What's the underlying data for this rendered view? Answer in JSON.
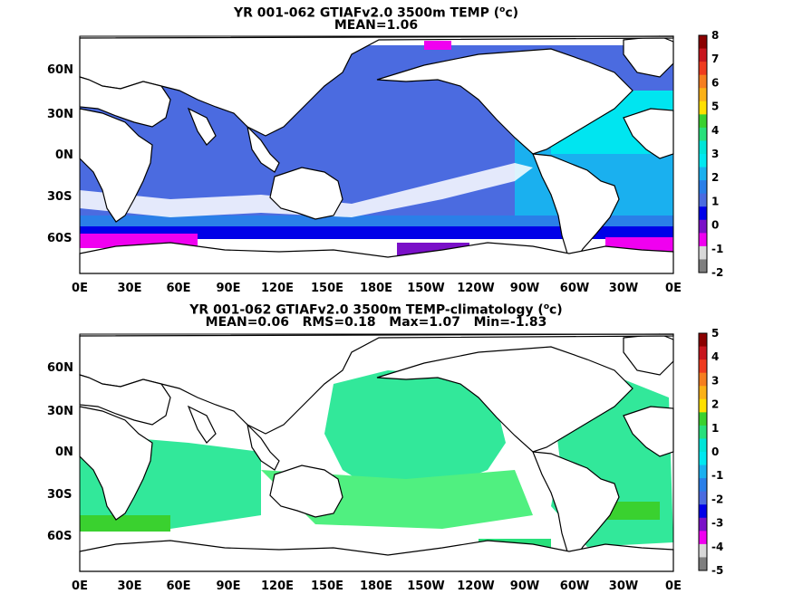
{
  "panels": [
    {
      "title_line1": "YR 001-062 GTIAFv2.0 3500m TEMP (",
      "title_unit": "o",
      "title_line1_end": "c)",
      "title_line2": "MEAN=1.06",
      "lat_labels": [
        "60N",
        "30N",
        "0N",
        "30S",
        "60S"
      ],
      "lon_labels": [
        "0E",
        "30E",
        "60E",
        "90E",
        "120E",
        "150E",
        "180E",
        "150W",
        "120W",
        "90W",
        "60W",
        "30W",
        "0E"
      ],
      "colorbar": {
        "ticks": [
          "8",
          "7",
          "6",
          "5",
          "4",
          "3",
          "2",
          "1",
          "0",
          "-1",
          "-2"
        ],
        "colors": [
          "#8b0000",
          "#c8161e",
          "#ef3b1f",
          "#f57e20",
          "#fbb117",
          "#ffe000",
          "#3ad12f",
          "#28e07b",
          "#00e5d8",
          "#00e8f0",
          "#1ab0ef",
          "#2a7fe8",
          "#4b6be0",
          "#0000e8",
          "#7a10c8",
          "#f000f0",
          "#d8d8d8",
          "#7f7f7f"
        ]
      }
    },
    {
      "title_line1": "YR 001-062 GTIAFv2.0 3500m TEMP-climatology (",
      "title_unit": "o",
      "title_line1_end": "c)",
      "title_line2": "MEAN=0.06   RMS=0.18   Max=1.07   Min=-1.83",
      "lat_labels": [
        "60N",
        "30N",
        "0N",
        "30S",
        "60S"
      ],
      "lon_labels": [
        "0E",
        "30E",
        "60E",
        "90E",
        "120E",
        "150E",
        "180E",
        "150W",
        "120W",
        "90W",
        "60W",
        "30W",
        "0E"
      ],
      "colorbar": {
        "ticks": [
          "5",
          "4",
          "3",
          "2",
          "1",
          "0",
          "-1",
          "-2",
          "-3",
          "-4",
          "-5"
        ],
        "colors": [
          "#8b0000",
          "#c8161e",
          "#ef3b1f",
          "#f57e20",
          "#fbb117",
          "#ffe000",
          "#3ad12f",
          "#28e07b",
          "#00e5d8",
          "#00e8f0",
          "#1ab0ef",
          "#2a7fe8",
          "#4b6be0",
          "#0000e8",
          "#7a10c8",
          "#f000f0",
          "#d8d8d8",
          "#7f7f7f"
        ]
      }
    }
  ]
}
